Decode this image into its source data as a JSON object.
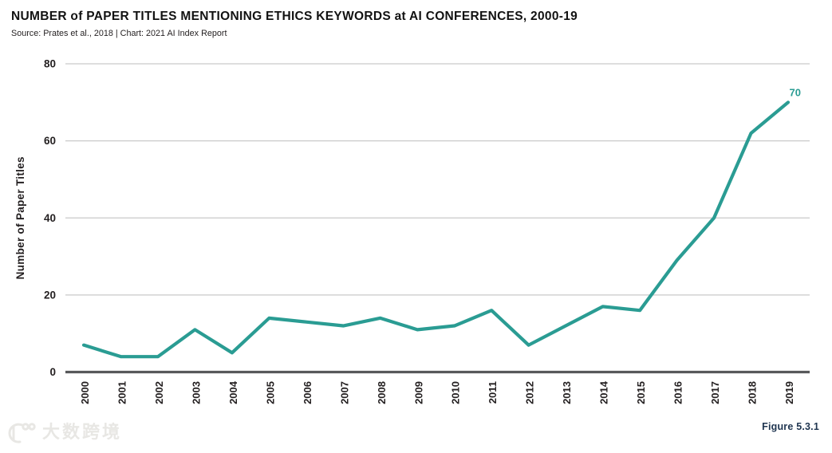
{
  "header": {
    "title": "NUMBER of PAPER TITLES MENTIONING ETHICS KEYWORDS at AI CONFERENCES, 2000-19",
    "source": "Source: Prates et al., 2018 | Chart: 2021 AI Index Report"
  },
  "footer": {
    "figure_label": "Figure 5.3.1"
  },
  "watermark": {
    "text": "大数跨境",
    "logo": "smiley-100-logo"
  },
  "colors": {
    "line": "#2A9C93",
    "grid": "#c9c9c9",
    "axis": "#58595b",
    "tick_text": "#231f20",
    "figure_label": "#1f3550",
    "annotation": "#2A9C93"
  },
  "chart_data": {
    "type": "line",
    "title": "NUMBER of PAPER TITLES MENTIONING ETHICS KEYWORDS at AI CONFERENCES, 2000-19",
    "source": "Source: Prates et al., 2018 | Chart: 2021 AI Index Report",
    "x": [
      "2000",
      "2001",
      "2002",
      "2003",
      "2004",
      "2005",
      "2006",
      "2007",
      "2008",
      "2009",
      "2010",
      "2011",
      "2012",
      "2013",
      "2014",
      "2015",
      "2016",
      "2017",
      "2018",
      "2019"
    ],
    "series": [
      {
        "name": "Number of Paper Titles",
        "values": [
          7,
          4,
          4,
          11,
          5,
          14,
          13,
          12,
          14,
          11,
          12,
          16,
          7,
          12,
          17,
          16,
          29,
          40,
          62,
          70
        ]
      }
    ],
    "xlabel": "",
    "ylabel": "Number of Paper Titles",
    "ylim": [
      0,
      80
    ],
    "yticks": [
      0,
      20,
      40,
      60,
      80
    ],
    "grid": true,
    "legend": false,
    "annotations": [
      {
        "x": "2019",
        "y": 70,
        "label": "70"
      }
    ]
  }
}
